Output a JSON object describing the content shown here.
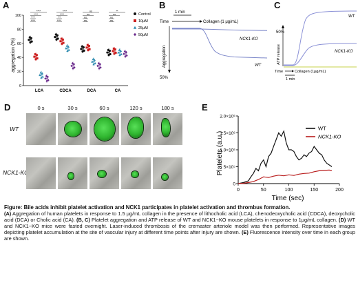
{
  "panels": {
    "A": "A",
    "B": "B",
    "C": "C",
    "D": "D",
    "E": "E"
  },
  "panelA": {
    "ylabel": "aggregation (%)",
    "yticks": [
      "0",
      "20",
      "40",
      "60",
      "80",
      "100"
    ],
    "groups": [
      "LCA",
      "CDCA",
      "DCA",
      "CA"
    ],
    "legend": [
      {
        "label": "Control",
        "color": "#111111",
        "marker": "circle"
      },
      {
        "label": "10μM",
        "color": "#cc1f1f",
        "marker": "square"
      },
      {
        "label": "25μM",
        "color": "#2e8bb0",
        "marker": "triangle"
      },
      {
        "label": "50μM",
        "color": "#6a2a8c",
        "marker": "diamond"
      }
    ],
    "sig": [
      "****",
      "****",
      "****",
      "****",
      "****",
      "****",
      "***",
      "****",
      "ns",
      "ns",
      "ns",
      "ns",
      "**",
      "ns",
      "ns",
      "ns"
    ]
  },
  "panelB": {
    "time_label": "1 min",
    "axis_left_top": "Time",
    "stim": "Collagen (1 μg/mL)",
    "ylabel": "Aggregation",
    "pct": "50%",
    "label_ko": "NCK1-KO",
    "label_wt": "WT"
  },
  "panelC": {
    "ylabel": "ATP release",
    "pct": "50%",
    "label_wt": "WT",
    "label_ko": "NCK1-KO",
    "axis_left": "Time",
    "stim": "Collagen (1μg/mL)",
    "time_label": "1 min"
  },
  "panelD": {
    "times": [
      "0 s",
      "30 s",
      "60 s",
      "120 s",
      "180 s"
    ],
    "rows": [
      "WT",
      "NCK1-KO"
    ]
  },
  "panelE": {
    "ylabel": "Platelets (a.u.)",
    "xlabel": "Time (sec)",
    "yticks": [
      "0",
      "5×10⁵",
      "1.0×10⁶",
      "1.5×10⁶",
      "2.0×10⁶"
    ],
    "xticks": [
      "0",
      "50",
      "100",
      "150",
      "200"
    ],
    "legend": [
      {
        "label": "WT",
        "color": "#111111"
      },
      {
        "label": "NCK1-KO",
        "color": "#b81c1c"
      }
    ]
  },
  "chart_data": [
    {
      "type": "bar",
      "title": "",
      "ylabel": "aggregation (%)",
      "ylim": [
        0,
        100
      ],
      "categories": [
        "LCA",
        "CDCA",
        "DCA",
        "CA"
      ],
      "series": [
        {
          "name": "Control",
          "values": [
            65,
            69,
            52,
            47
          ],
          "color": "#111111"
        },
        {
          "name": "10μM",
          "values": [
            41,
            63,
            54,
            49
          ],
          "color": "#cc1f1f"
        },
        {
          "name": "25μM",
          "values": [
            15,
            53,
            34,
            47
          ],
          "color": "#2e8bb0"
        },
        {
          "name": "50μM",
          "values": [
            10,
            28,
            28,
            45
          ],
          "color": "#6a2a8c"
        }
      ],
      "legend": "right"
    },
    {
      "type": "line",
      "title": "",
      "xlabel": "Time (sec)",
      "ylabel": "Platelets (a.u.)",
      "xlim": [
        0,
        200
      ],
      "ylim": [
        0,
        2000000
      ],
      "series": [
        {
          "name": "WT",
          "color": "#111111",
          "x": [
            0,
            10,
            20,
            25,
            30,
            35,
            40,
            45,
            50,
            55,
            60,
            65,
            70,
            75,
            80,
            85,
            90,
            95,
            100,
            105,
            110,
            115,
            120,
            125,
            130,
            135,
            140,
            145,
            150,
            155,
            160,
            165,
            170,
            175,
            180,
            185
          ],
          "y": [
            0,
            30000,
            80000,
            200000,
            300000,
            450000,
            380000,
            600000,
            700000,
            500000,
            800000,
            900000,
            1100000,
            1300000,
            1500000,
            1400000,
            1550000,
            1200000,
            1000000,
            1000000,
            950000,
            800000,
            700000,
            750000,
            850000,
            800000,
            900000,
            950000,
            1100000,
            1000000,
            900000,
            850000,
            700000,
            600000,
            550000,
            500000
          ]
        },
        {
          "name": "NCK1-KO",
          "color": "#b81c1c",
          "x": [
            0,
            10,
            20,
            30,
            40,
            50,
            60,
            70,
            80,
            90,
            100,
            110,
            120,
            130,
            140,
            150,
            160,
            170,
            180,
            185
          ],
          "y": [
            0,
            10000,
            30000,
            60000,
            120000,
            200000,
            180000,
            220000,
            250000,
            230000,
            260000,
            240000,
            280000,
            300000,
            310000,
            350000,
            380000,
            390000,
            400000,
            380000
          ]
        }
      ],
      "legend": "top-right"
    }
  ],
  "caption": {
    "title": "Figure: Bile acids inhibit platelet activation and NCK1 participates in platelet activation and thrombus formation.",
    "p1": "(A)",
    "t1": " Aggregation of human platelets in response to 1.5 μg/mL collagen in the presence of lithocholic acid (LCA), chenodeoxycholic acid (CDCA), deoxycholic acid (DCA) or Cholic acid (CA). ",
    "p2": "(B, C)",
    "t2": " Platelet aggregation and ATP release of WT and NCK1−KO mouse platelets in response to 1μg/mL collagen. ",
    "p3": "(D)",
    "t3": " WT and NCK1−KO mice were fasted overnight. Laser-induced thrombosis of the cremaster arteriole model was then performed. Representative images depicting platelet accumulation at the site of vascular injury at different time points after injury are shown. ",
    "p4": "(E)",
    "t4": " Fluorescence intensity over time in each group are shown."
  }
}
